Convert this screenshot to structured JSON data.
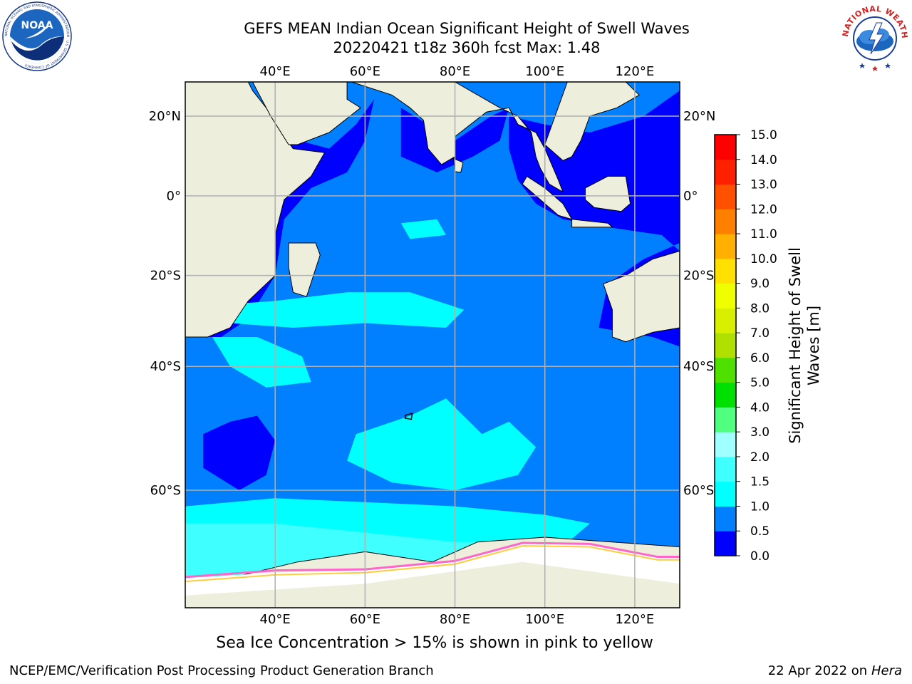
{
  "header": {
    "title_line1": "GEFS MEAN Indian Ocean Significant Height of Swell Waves",
    "title_line2": "20220421 t18z 360h fcst   Max: 1.48"
  },
  "logos": {
    "left_text": "NOAA",
    "left_ring_text": "NATIONAL OCEANIC AND ATMOSPHERIC ADMINISTRATION · U.S. DEPARTMENT OF COMMERCE",
    "right_ring_text": "NATIONAL WEATHER SERVICE"
  },
  "map": {
    "lon_range": [
      20,
      130
    ],
    "lat_range": [
      -72,
      28
    ],
    "lon_ticks": [
      40,
      60,
      80,
      100,
      120
    ],
    "lon_tick_labels": [
      "40°E",
      "60°E",
      "80°E",
      "100°E",
      "120°E"
    ],
    "lat_ticks": [
      20,
      0,
      -20,
      -40,
      -60
    ],
    "lat_tick_labels": [
      "20°N",
      "0°",
      "20°S",
      "40°S",
      "60°S"
    ],
    "grid": true,
    "ocean_base_color": "#0080ff",
    "land_color": "#eeeedc",
    "sea_ice_color": "#ffffff"
  },
  "colorbar": {
    "label_line1": "Significant Height of Swell",
    "label_line2": "Waves [m]",
    "tick_labels": [
      "0.0",
      "0.5",
      "1.0",
      "1.5",
      "2.0",
      "3.0",
      "4.0",
      "5.0",
      "6.0",
      "7.0",
      "8.0",
      "9.0",
      "10.0",
      "11.0",
      "12.0",
      "13.0",
      "14.0",
      "15.0"
    ],
    "colors": [
      "#0000ff",
      "#0080ff",
      "#00ffff",
      "#40ffff",
      "#a0ffff",
      "#50ff80",
      "#00e000",
      "#50e000",
      "#b0e000",
      "#d8f000",
      "#f0ff00",
      "#ffe000",
      "#ffb000",
      "#ff8000",
      "#ff5000",
      "#ff2000",
      "#ff0000"
    ]
  },
  "caption": "Sea Ice Concentration > 15% is shown in pink to yellow",
  "footer": {
    "left": "NCEP/EMC/Verification Post Processing Product Generation Branch",
    "date": "22 Apr 2022 on ",
    "host": "Hera"
  }
}
